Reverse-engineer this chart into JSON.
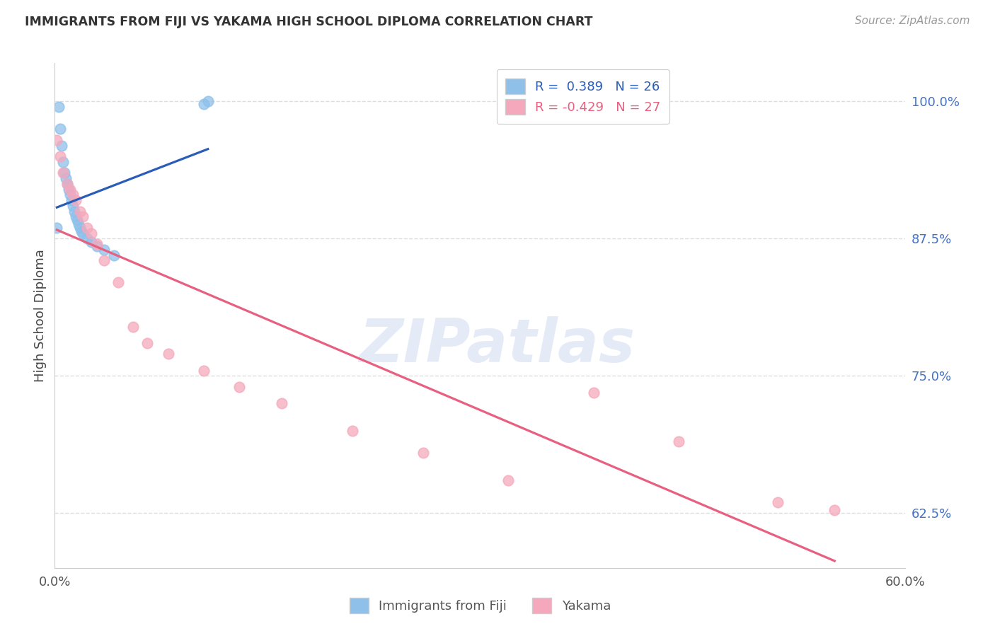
{
  "title": "IMMIGRANTS FROM FIJI VS YAKAMA HIGH SCHOOL DIPLOMA CORRELATION CHART",
  "source": "Source: ZipAtlas.com",
  "ylabel": "High School Diploma",
  "xlim": [
    0.0,
    60.0
  ],
  "ylim": [
    57.5,
    103.5
  ],
  "yticks": [
    62.5,
    75.0,
    87.5,
    100.0
  ],
  "ytick_labels": [
    "62.5%",
    "75.0%",
    "87.5%",
    "100.0%"
  ],
  "xtick_positions": [
    0,
    10,
    20,
    30,
    40,
    50,
    60
  ],
  "xtick_labels": [
    "0.0%",
    "",
    "",
    "",
    "",
    "",
    "60.0%"
  ],
  "fiji_R": 0.389,
  "fiji_N": 26,
  "yakama_R": -0.429,
  "yakama_N": 27,
  "fiji_color": "#8ec0ea",
  "yakama_color": "#f5a8bc",
  "fiji_line_color": "#2a5db8",
  "yakama_line_color": "#e86080",
  "fiji_points_x": [
    0.15,
    0.3,
    0.4,
    0.5,
    0.6,
    0.7,
    0.8,
    0.9,
    1.0,
    1.1,
    1.2,
    1.3,
    1.4,
    1.5,
    1.6,
    1.7,
    1.8,
    1.9,
    2.0,
    2.3,
    2.6,
    3.0,
    3.5,
    4.2,
    10.5,
    10.8
  ],
  "fiji_points_y": [
    88.5,
    99.5,
    97.5,
    96.0,
    94.5,
    93.5,
    93.0,
    92.5,
    92.0,
    91.5,
    91.0,
    90.5,
    90.0,
    89.5,
    89.2,
    88.8,
    88.5,
    88.2,
    88.0,
    87.5,
    87.2,
    86.8,
    86.5,
    86.0,
    99.8,
    100.0
  ],
  "yakama_points_x": [
    0.15,
    0.4,
    0.6,
    0.9,
    1.1,
    1.3,
    1.5,
    1.8,
    2.0,
    2.3,
    2.6,
    3.0,
    3.5,
    4.5,
    5.5,
    6.5,
    8.0,
    10.5,
    13.0,
    16.0,
    21.0,
    26.0,
    32.0,
    38.0,
    44.0,
    51.0,
    55.0
  ],
  "yakama_points_y": [
    96.5,
    95.0,
    93.5,
    92.5,
    92.0,
    91.5,
    91.0,
    90.0,
    89.5,
    88.5,
    88.0,
    87.0,
    85.5,
    83.5,
    79.5,
    78.0,
    77.0,
    75.5,
    74.0,
    72.5,
    70.0,
    68.0,
    65.5,
    73.5,
    69.0,
    63.5,
    62.8
  ],
  "watermark": "ZIPatlas",
  "bg_color": "#ffffff",
  "grid_color": "#dddddd"
}
